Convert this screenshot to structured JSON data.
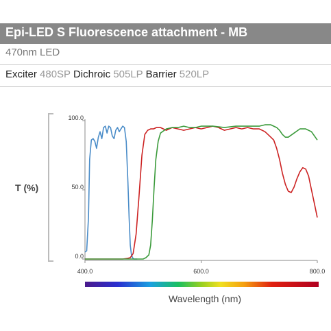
{
  "header": {
    "title": "Epi-LED S Fluorescence attachment - MB",
    "subtitle": "470nm LED"
  },
  "filters": [
    {
      "label": "Exciter",
      "value": "480SP"
    },
    {
      "label": "Dichroic",
      "value": "505LP"
    },
    {
      "label": "Barrier",
      "value": "520LP"
    }
  ],
  "chart_data": {
    "type": "line",
    "xlabel": "Wavelength (nm)",
    "ylabel": "T (%)",
    "xlim": [
      400,
      800
    ],
    "ylim": [
      0,
      100
    ],
    "x_ticks": [
      "400.0",
      "600.0",
      "800.0"
    ],
    "y_ticks": [
      "0.0",
      "50.0",
      "100.0"
    ],
    "grid": false,
    "legend": "none",
    "series": [
      {
        "color": "#4a8cc8",
        "x": [
          400,
          403,
          406,
          408,
          411,
          414,
          417,
          420,
          423,
          426,
          429,
          432,
          435,
          438,
          441,
          444,
          447,
          450,
          453,
          456,
          459,
          462,
          465,
          468,
          471,
          474,
          476,
          478,
          480,
          482,
          484,
          486,
          488,
          490
        ],
        "y": [
          5,
          6,
          30,
          72,
          86,
          87,
          85,
          80,
          88,
          92,
          87,
          95,
          96,
          91,
          96,
          95,
          89,
          87,
          93,
          95,
          92,
          94,
          96,
          95,
          85,
          55,
          30,
          10,
          3,
          1,
          0,
          0,
          0,
          0
        ]
      },
      {
        "color": "#cc2222",
        "x": [
          400,
          450,
          465,
          473,
          478,
          483,
          488,
          493,
          498,
          503,
          508,
          513,
          518,
          523,
          530,
          540,
          550,
          560,
          570,
          580,
          590,
          600,
          610,
          620,
          630,
          640,
          650,
          660,
          670,
          680,
          690,
          700,
          710,
          715,
          720,
          725,
          730,
          735,
          740,
          745,
          750,
          755,
          760,
          765,
          770,
          775,
          780,
          785,
          790,
          795,
          800
        ],
        "y": [
          0,
          0,
          0,
          0.5,
          1,
          4,
          18,
          45,
          75,
          90,
          93,
          94,
          94,
          95,
          95,
          93,
          95,
          94,
          93,
          94,
          95,
          94,
          95,
          96,
          95,
          93,
          94,
          95,
          94,
          95,
          94,
          94,
          92,
          90,
          88,
          86,
          80,
          72,
          62,
          54,
          49,
          48,
          52,
          58,
          63,
          66,
          65,
          60,
          50,
          40,
          30
        ]
      },
      {
        "color": "#3a9a3a",
        "x": [
          400,
          490,
          500,
          505,
          510,
          513,
          516,
          519,
          522,
          526,
          530,
          540,
          550,
          560,
          570,
          580,
          590,
          600,
          620,
          640,
          660,
          680,
          700,
          710,
          720,
          730,
          735,
          740,
          745,
          750,
          760,
          770,
          780,
          790,
          800
        ],
        "y": [
          0,
          0,
          0,
          1,
          3,
          10,
          28,
          52,
          72,
          85,
          91,
          94,
          95,
          95,
          96,
          95,
          95,
          96,
          96,
          95,
          96,
          96,
          96,
          97,
          97,
          95,
          93,
          90,
          88,
          88,
          91,
          94,
          94,
          92,
          86
        ]
      }
    ]
  }
}
